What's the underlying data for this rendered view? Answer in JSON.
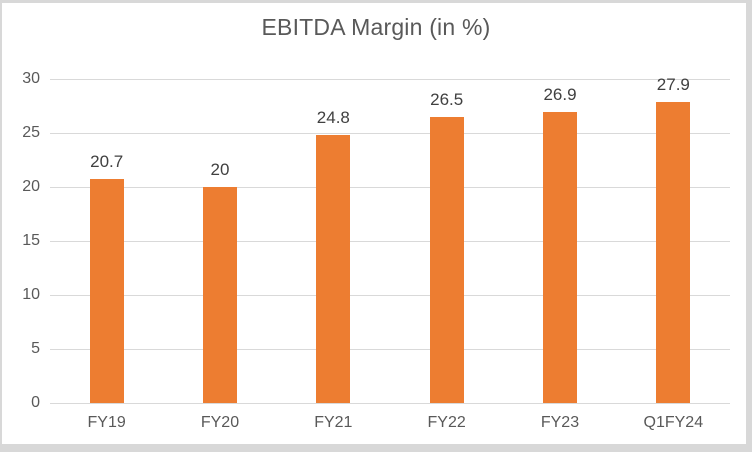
{
  "frame": {
    "outer_border_color": "#d8d8d8",
    "panel_background": "#ffffff"
  },
  "chart_data": {
    "type": "bar",
    "title": "EBITDA Margin (in %)",
    "categories": [
      "FY19",
      "FY20",
      "FY21",
      "FY22",
      "FY23",
      "Q1FY24"
    ],
    "values": [
      20.7,
      20,
      24.8,
      26.5,
      26.9,
      27.9
    ],
    "value_labels": [
      "20.7",
      "20",
      "24.8",
      "26.5",
      "26.9",
      "27.9"
    ],
    "xlabel": "",
    "ylabel": "",
    "ylim": [
      0,
      30
    ],
    "yticks": [
      0,
      5,
      10,
      15,
      20,
      25,
      30
    ],
    "grid": true,
    "legend": "none",
    "colors": {
      "bar": "#ED7D31",
      "gridline": "#d9d9d9",
      "axis_line": "#d9d9d9",
      "title_text": "#595959",
      "tick_text": "#595959",
      "data_label_text": "#404040"
    }
  }
}
